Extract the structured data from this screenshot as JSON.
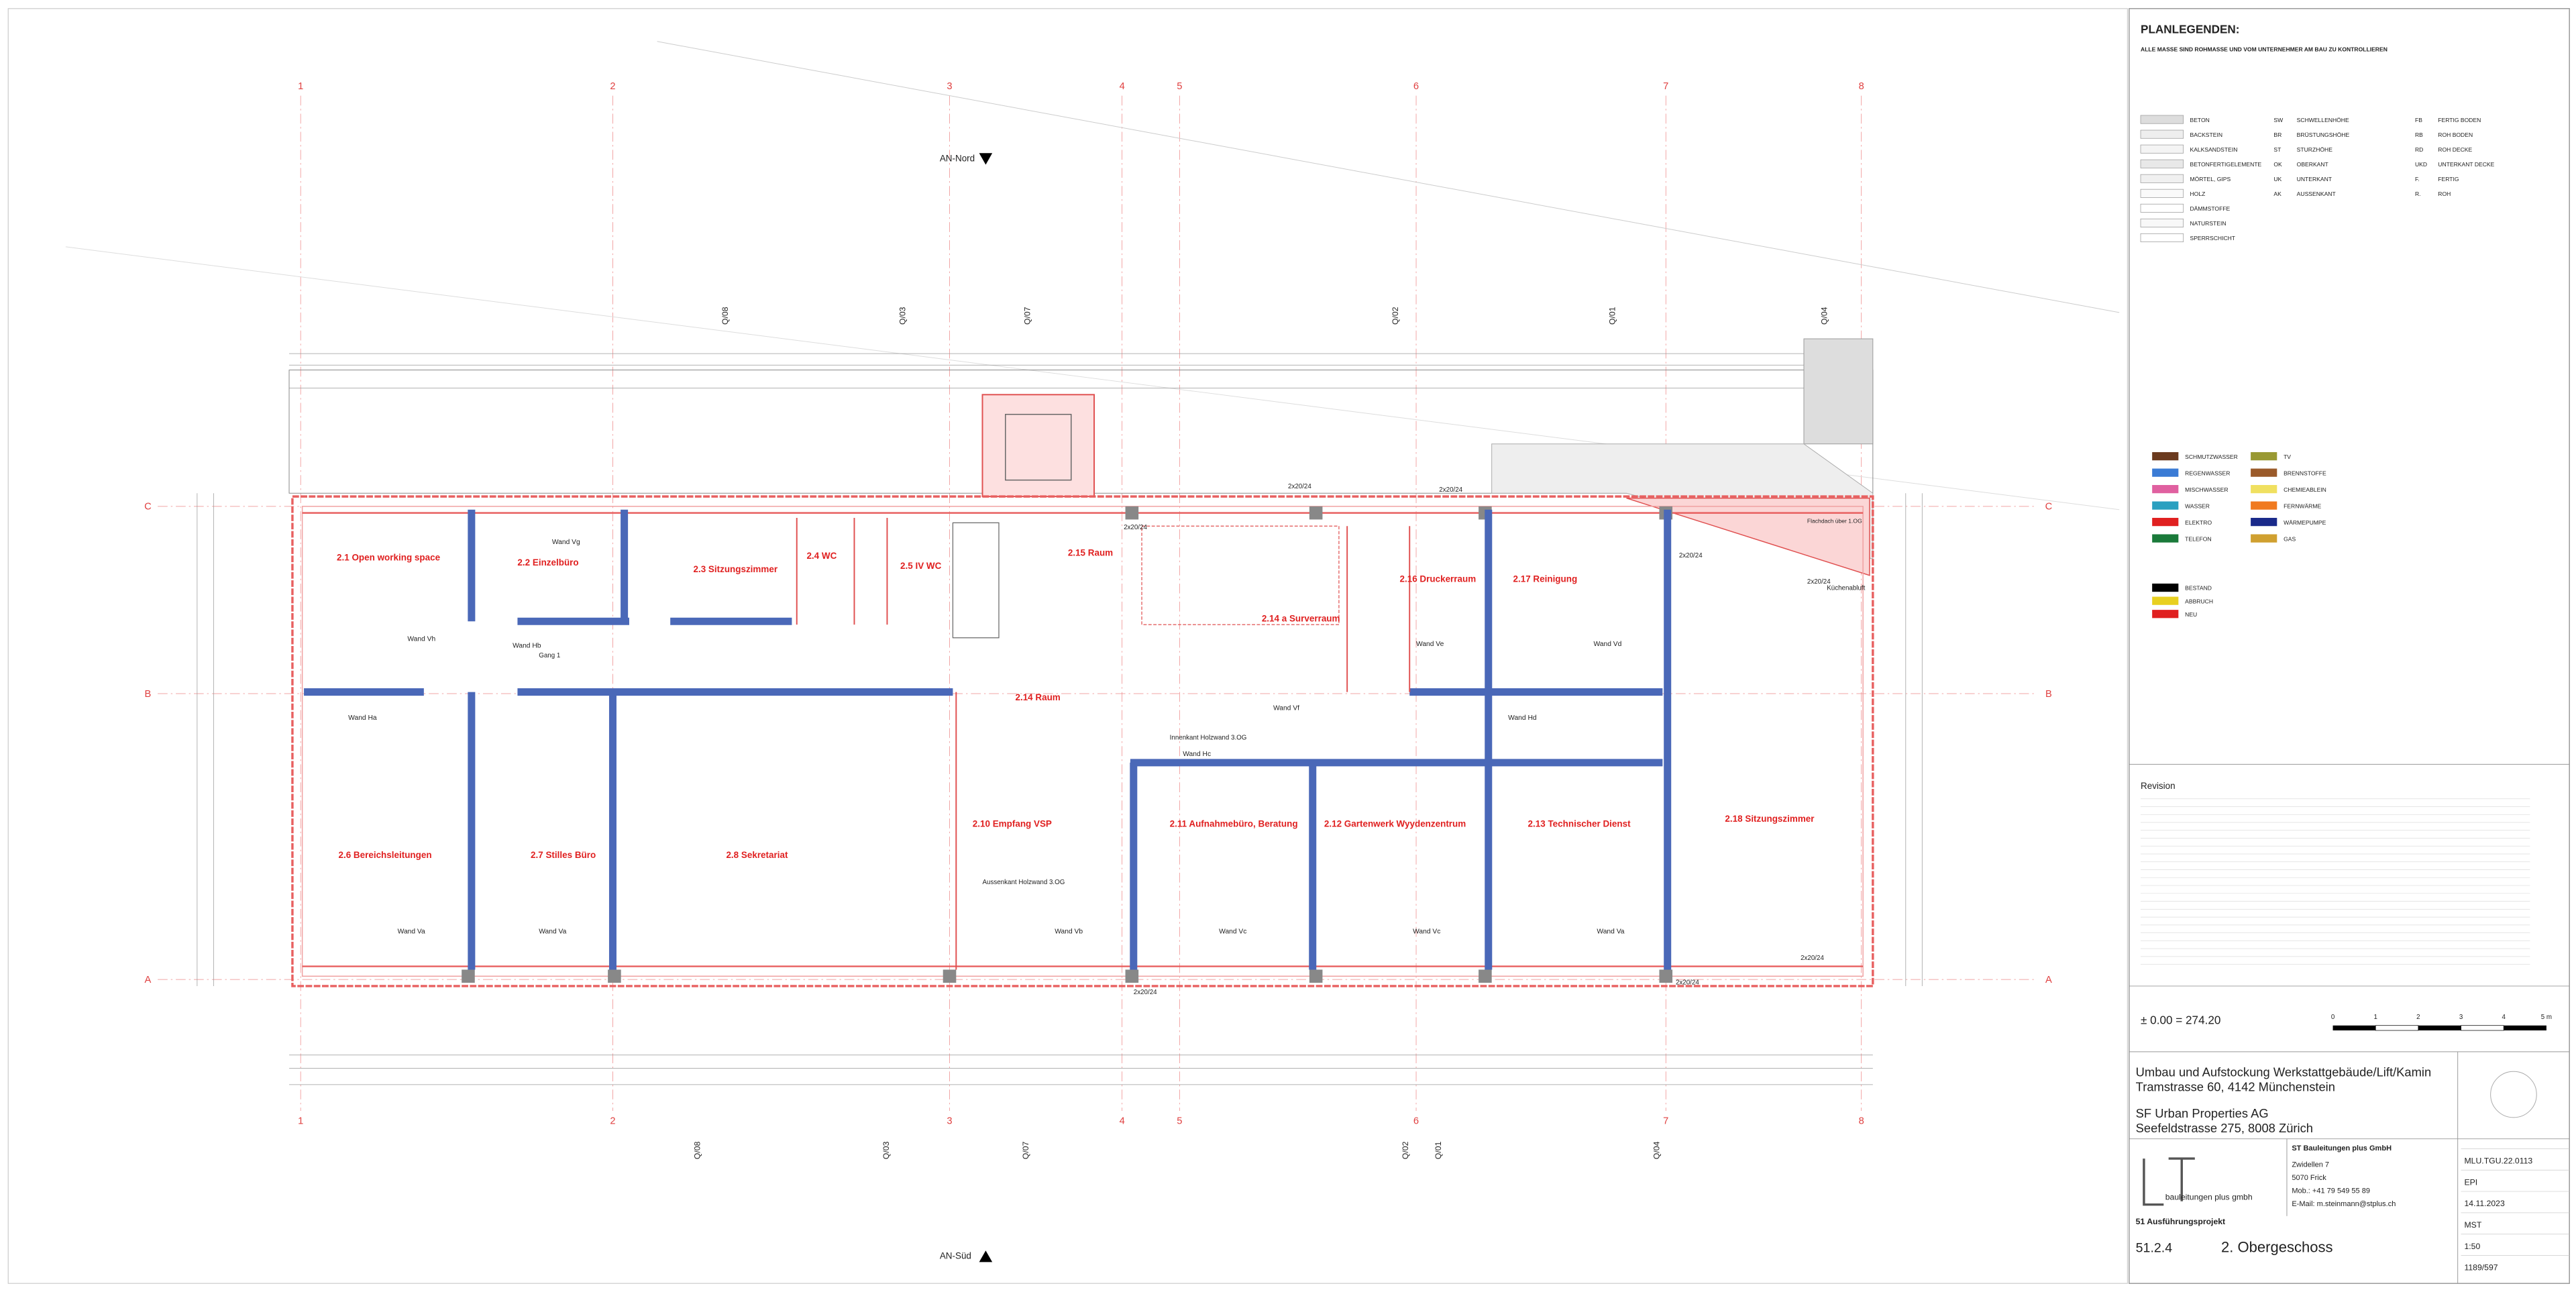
{
  "axes": {
    "numbers": [
      "1",
      "2",
      "3",
      "4",
      "5",
      "6",
      "7",
      "8"
    ],
    "letters": [
      "A",
      "B",
      "C"
    ],
    "q_labels": [
      "Q/08",
      "Q/03",
      "Q/07",
      "Q/02",
      "Q/01",
      "Q/04"
    ]
  },
  "orientation": {
    "north": "AN-Nord",
    "south": "AN-Süd"
  },
  "rooms": [
    "2.1 Open working space",
    "2.2 Einzelbüro",
    "2.3 Sitzungszimmer",
    "2.4 WC",
    "2.5 IV WC",
    "2.15 Raum",
    "2.16 Druckerraum",
    "2.17 Reinigung",
    "2.14 a Surverraum",
    "2.14 Raum",
    "2.6 Bereichsleitungen",
    "2.7 Stilles Büro",
    "2.8 Sekretariat",
    "2.10 Empfang VSP",
    "2.11 Aufnahmebüro, Beratung",
    "2.12 Gartenwerk Wyydenzentrum",
    "2.13 Technischer Dienst",
    "2.18 Sitzungszimmer"
  ],
  "walls": [
    "Wand Vh",
    "Wand Hb",
    "Wand Ha",
    "Wand Va",
    "Wand Va",
    "Wand Vg",
    "Wand Ve",
    "Wand Vd",
    "Wand Hd",
    "Wand Vf",
    "Wand Hc",
    "Wand Vb",
    "Wand Vc",
    "Wand Vc",
    "Wand Va"
  ],
  "notes": [
    "Innenkant Holzwand 3.OG",
    "Aussenkant Holzwand 3.OG",
    "Küchenabluft",
    "Flachdach über 1.OG",
    "Gang 1",
    "2x20/24"
  ],
  "legend": {
    "title": "PLANLEGENDEN:",
    "subtitle": "ALLE MASSE SIND ROHMASSE UND VOM UNTERNEHMER AM BAU ZU KONTROLLIEREN",
    "materials": [
      "BETON",
      "BACKSTEIN",
      "KALKSANDSTEIN",
      "BETONFERTIGELEMENTE",
      "MÖRTEL, GIPS",
      "HOLZ",
      "DÄMMSTOFFE",
      "NATURSTEIN",
      "SPERRSCHICHT"
    ],
    "abbreviations": [
      [
        "SW",
        "SCHWELLENHÖHE"
      ],
      [
        "BR",
        "BRÜSTUNGSHÖHE"
      ],
      [
        "ST",
        "STURZHÖHE"
      ],
      [
        "OK",
        "OBERKANT"
      ],
      [
        "UK",
        "UNTERKANT"
      ],
      [
        "AK",
        "AUSSENKANT"
      ]
    ],
    "abbreviations2": [
      [
        "FB",
        "FERTIG BODEN"
      ],
      [
        "RB",
        "ROH BODEN"
      ],
      [
        "RD",
        "ROH DECKE"
      ],
      [
        "UKD",
        "UNTERKANT DECKE"
      ],
      [
        "F.",
        "FERTIG"
      ],
      [
        "R.",
        "ROH"
      ]
    ],
    "installations": [
      "SCHMUTZWASSER",
      "REGENWASSER",
      "MISCHWASSER",
      "WASSER",
      "ELEKTRO",
      "TELEFON"
    ],
    "installations2": [
      "TV",
      "BRENNSTOFFE",
      "CHEMIEABLEIN",
      "FERNWÄRME",
      "WÄRMEPUMPE",
      "GAS"
    ],
    "status": [
      "BESTAND",
      "ABBRUCH",
      "NEU"
    ]
  },
  "revision": {
    "title": "Revision"
  },
  "elevation": "± 0.00 = 274.20",
  "scale_bar": [
    "0",
    "1",
    "2",
    "3",
    "4",
    "5 m"
  ],
  "title_block": {
    "project": "Umbau und Aufstockung Werkstattgebäude/Lift/Kamin",
    "address": "Tramstrasse 60, 4142 Münchenstein",
    "client": "SF Urban Properties AG",
    "client_address": "Seefeldstrasse 275, 8008 Zürich",
    "office": "ST Bauleitungen plus GmbH",
    "office_lines": [
      "Zwidellen 7",
      "5070 Frick",
      "Mob.: +41 79 549 55 89",
      "E-Mail: m.steinmann@stplus.ch"
    ],
    "logo": "bauleitungen plus gmbh",
    "phase": "51 Ausführungsprojekt",
    "plan_no": "51.2.4",
    "plan_name": "2. Obergeschoss",
    "meta": [
      "MLU.TGU.22.0113",
      "EPI",
      "14.11.2023",
      "MST",
      "1:50",
      "1189/597"
    ]
  }
}
